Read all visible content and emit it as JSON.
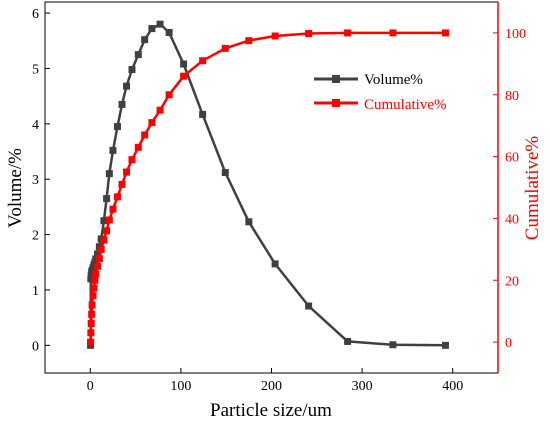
{
  "chart_data": {
    "type": "line",
    "xlabel": "Particle size/um",
    "ylabel": "Volume/%",
    "y2label": "Cumulative%",
    "xlim": [
      -50,
      450
    ],
    "ylim": [
      -0.5,
      6.2
    ],
    "y2lim": [
      -10,
      110
    ],
    "xticks": [
      0,
      100,
      200,
      300,
      400
    ],
    "yticks": [
      0,
      1,
      2,
      3,
      4,
      5,
      6
    ],
    "y2ticks": [
      0,
      20,
      40,
      60,
      80,
      100
    ],
    "legend_position": "upper-right inside plot",
    "series": [
      {
        "name": "Volume%",
        "axis": "left",
        "color": "#404040",
        "marker": "square",
        "x": [
          0.3,
          0.6,
          1,
          1.5,
          2,
          3,
          4,
          5,
          6,
          8,
          10,
          12,
          15,
          18,
          21,
          25,
          30,
          35,
          40,
          46,
          53,
          60,
          68,
          77,
          87,
          103,
          124,
          149,
          175,
          204,
          241,
          284,
          334,
          392
        ],
        "y": [
          0,
          1.2,
          1.27,
          1.32,
          1.35,
          1.4,
          1.45,
          1.5,
          1.56,
          1.65,
          1.78,
          1.92,
          2.25,
          2.65,
          3.1,
          3.52,
          3.95,
          4.35,
          4.68,
          4.98,
          5.25,
          5.52,
          5.72,
          5.8,
          5.65,
          5.08,
          4.17,
          3.12,
          2.23,
          1.47,
          0.71,
          0.07,
          0.01,
          0.0
        ]
      },
      {
        "name": "Cumulative%",
        "axis": "right",
        "color": "#ff0000",
        "marker": "square",
        "x": [
          0.3,
          0.6,
          1,
          1.5,
          2,
          3,
          4,
          5,
          6,
          8,
          10,
          12,
          15,
          18,
          21,
          25,
          30,
          35,
          40,
          46,
          53,
          60,
          68,
          77,
          87,
          103,
          124,
          149,
          175,
          204,
          241,
          284,
          334,
          392
        ],
        "y": [
          0,
          3,
          6,
          9,
          12,
          15,
          17.5,
          20,
          22,
          24.5,
          27,
          30,
          33,
          36,
          39.5,
          43,
          47,
          51,
          55,
          59,
          63,
          67,
          71,
          75,
          80,
          86,
          91,
          95,
          97.5,
          99,
          99.8,
          100,
          100,
          100
        ]
      }
    ]
  }
}
